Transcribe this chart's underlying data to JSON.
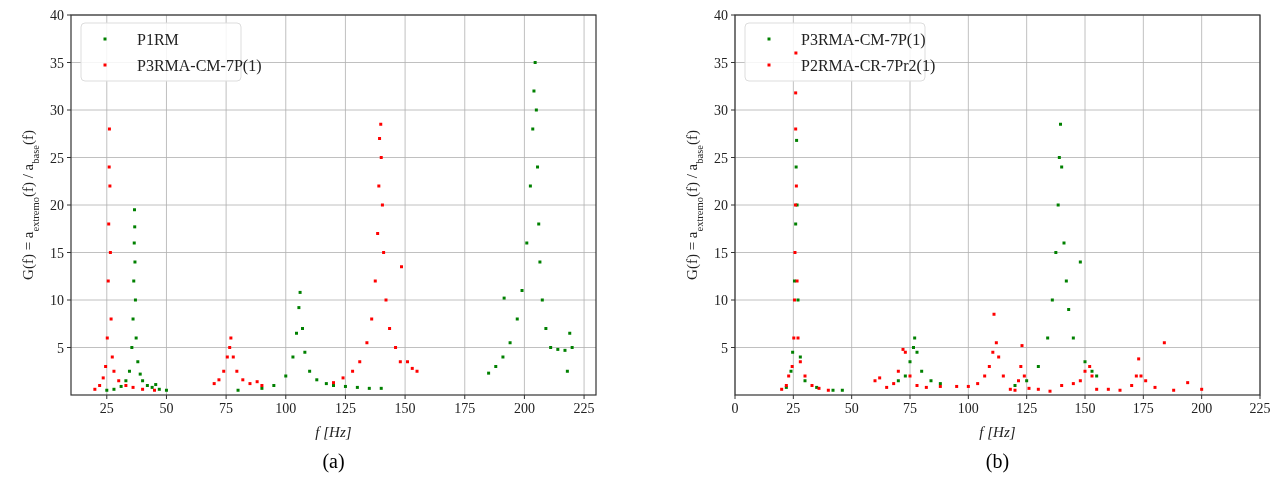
{
  "chart_data": [
    {
      "type": "scatter",
      "title": "(a)",
      "xlabel": "f [Hz]",
      "ylabel": "G(f) = a$_{extremo}$(f) / a$_{base}$(f)",
      "xlim": [
        10,
        230
      ],
      "xticks": [
        25,
        50,
        75,
        100,
        125,
        150,
        175,
        200,
        225
      ],
      "ylim": [
        0,
        40
      ],
      "yticks": [
        5,
        10,
        15,
        20,
        25,
        30,
        35,
        40
      ],
      "grid": true,
      "legend": "top left",
      "marker": "square",
      "series": [
        {
          "name": "P1RM",
          "color": "#008000",
          "x": [
            25,
            28,
            31,
            33,
            34.5,
            35.5,
            36,
            36.3,
            36.5,
            36.6,
            36.7,
            36.8,
            37,
            37.3,
            38,
            39,
            40,
            42,
            44,
            45.5,
            47,
            50,
            80,
            90,
            95,
            100,
            103,
            104.5,
            105.5,
            106,
            107,
            108,
            110,
            113,
            117,
            120,
            125,
            130,
            135,
            140,
            185,
            188,
            191,
            191.5,
            194,
            197,
            199,
            201,
            202.5,
            203.5,
            204,
            204.5,
            205,
            205.5,
            206,
            206.5,
            207.5,
            209,
            211,
            214,
            217,
            218,
            219,
            220
          ],
          "values": [
            0.5,
            0.6,
            0.9,
            1.5,
            2.5,
            5,
            8,
            12,
            16,
            19.5,
            17.7,
            14,
            10,
            6,
            3.5,
            2.2,
            1.5,
            1,
            0.8,
            1.1,
            0.6,
            0.5,
            0.5,
            0.7,
            1,
            2,
            4,
            6.5,
            9.2,
            10.8,
            7,
            4.5,
            2.5,
            1.6,
            1.2,
            1,
            0.9,
            0.8,
            0.7,
            0.7,
            2.3,
            3,
            4,
            10.2,
            5.5,
            8,
            11,
            16,
            22,
            28,
            32,
            35,
            30,
            24,
            18,
            14,
            10,
            7,
            5,
            4.8,
            4.7,
            2.5,
            6.5,
            5
          ]
        },
        {
          "name": "P3RMA-CM-7P(1)",
          "color": "#ff0000",
          "x": [
            20,
            22,
            23.5,
            24.5,
            25.2,
            25.6,
            25.8,
            26,
            26.1,
            26.3,
            26.5,
            26.8,
            27.3,
            28,
            30,
            33,
            36,
            40,
            45,
            70,
            72,
            74,
            75.5,
            76.5,
            77,
            78,
            79.5,
            82,
            85,
            88,
            90,
            120,
            124,
            128,
            131,
            134,
            136,
            137.5,
            138.5,
            139,
            139.3,
            139.8,
            140,
            140.5,
            141,
            142,
            143.5,
            146,
            148,
            148.5,
            151,
            153,
            155
          ],
          "values": [
            0.6,
            1,
            1.8,
            3,
            6,
            12,
            18,
            24,
            28,
            22,
            15,
            8,
            4,
            2.5,
            1.5,
            1,
            0.8,
            0.6,
            0.5,
            1.2,
            1.6,
            2.5,
            4,
            5,
            6,
            4,
            2.5,
            1.6,
            1.2,
            1.4,
            1,
            1.3,
            1.8,
            2.5,
            3.5,
            5.5,
            8,
            12,
            17,
            22,
            27,
            28.5,
            25,
            20,
            15,
            10,
            7,
            5,
            3.5,
            13.5,
            3.5,
            2.8,
            2.5
          ]
        }
      ]
    },
    {
      "type": "scatter",
      "title": "(b)",
      "xlabel": "f [Hz]",
      "ylabel": "G(f) = a$_{extremo}$(f) / a$_{base}$(f)",
      "xlim": [
        0,
        225
      ],
      "xticks": [
        0,
        25,
        50,
        75,
        100,
        125,
        150,
        175,
        200,
        225
      ],
      "ylim": [
        0,
        40
      ],
      "yticks": [
        5,
        10,
        15,
        20,
        25,
        30,
        35,
        40
      ],
      "grid": true,
      "legend": "top left",
      "marker": "square",
      "series": [
        {
          "name": "P3RMA-CM-7P(1)",
          "color": "#008000",
          "x": [
            22,
            24,
            24.7,
            25.5,
            26,
            26.2,
            26.4,
            26.6,
            27,
            28,
            30,
            35,
            42,
            46,
            70,
            73,
            75,
            76.5,
            77,
            78,
            80,
            84,
            88,
            120,
            125,
            130,
            134,
            136,
            137.5,
            138.5,
            139,
            139.5,
            140,
            141,
            142,
            143,
            145,
            148,
            150,
            153,
            155
          ],
          "values": [
            0.8,
            2.5,
            4.5,
            12,
            18,
            24,
            26.8,
            20,
            10,
            4,
            1.5,
            0.8,
            0.5,
            0.5,
            1.5,
            2,
            3.5,
            5,
            6,
            4.5,
            2.5,
            1.5,
            1.2,
            1,
            1.5,
            3,
            6,
            10,
            15,
            20,
            25,
            28.5,
            24,
            16,
            12,
            9,
            6,
            14,
            3.5,
            2.5,
            2
          ]
        },
        {
          "name": "P2RMA-CR-7Pr2(1)",
          "color": "#ff0000",
          "x": [
            20,
            22,
            23,
            24.5,
            25.2,
            25.5,
            25.7,
            25.9,
            26,
            26,
            26.1,
            26.3,
            26.6,
            27,
            28,
            30,
            33,
            36,
            40,
            60,
            62,
            65,
            68,
            70,
            72,
            73,
            75,
            78,
            82,
            88,
            95,
            100,
            104,
            107,
            109,
            110.5,
            111,
            112,
            113,
            115,
            118,
            120,
            121.5,
            122.5,
            123,
            124,
            126,
            130,
            135,
            140,
            145,
            148,
            150,
            152,
            153,
            155,
            160,
            165,
            170,
            172,
            173,
            174,
            176,
            180,
            184,
            188,
            194,
            200
          ],
          "values": [
            0.6,
            1,
            2,
            3,
            6,
            10,
            15,
            20,
            28,
            31.8,
            36,
            22,
            12,
            6,
            3.5,
            2,
            1,
            0.7,
            0.5,
            1.5,
            1.8,
            0.8,
            1.2,
            2.5,
            4.8,
            4.5,
            2,
            1,
            0.8,
            0.9,
            0.9,
            0.9,
            1.2,
            2,
            3,
            4.5,
            8.5,
            5.5,
            4,
            2,
            0.6,
            0.5,
            1.5,
            3,
            5.2,
            2,
            0.7,
            0.6,
            0.4,
            1,
            1.2,
            1.5,
            2.5,
            3,
            2,
            0.6,
            0.6,
            0.5,
            1,
            2,
            3.8,
            2,
            1.5,
            0.8,
            5.5,
            0.5,
            1.3,
            0.6
          ]
        }
      ]
    }
  ]
}
